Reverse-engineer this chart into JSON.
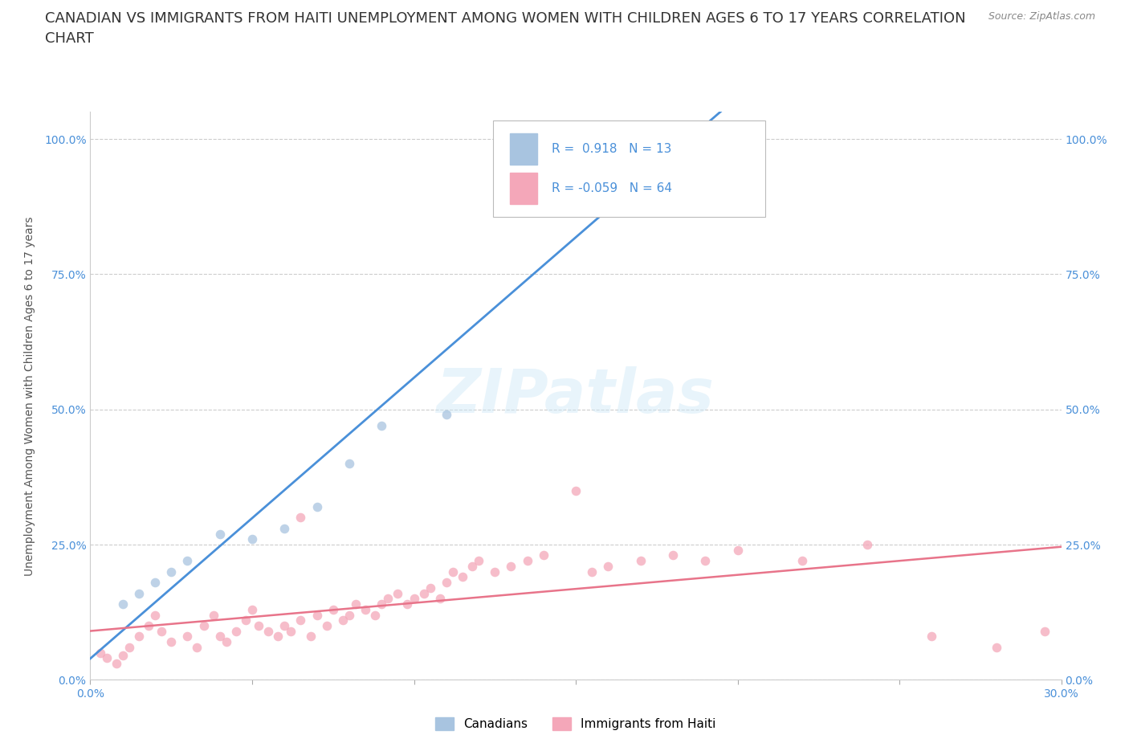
{
  "title_line1": "CANADIAN VS IMMIGRANTS FROM HAITI UNEMPLOYMENT AMONG WOMEN WITH CHILDREN AGES 6 TO 17 YEARS CORRELATION",
  "title_line2": "CHART",
  "source_text": "Source: ZipAtlas.com",
  "ylabel": "Unemployment Among Women with Children Ages 6 to 17 years",
  "watermark": "ZIPatlas",
  "legend_entries": [
    {
      "label": "Canadians",
      "R": 0.918,
      "N": 13,
      "color": "#a8c4e0"
    },
    {
      "label": "Immigrants from Haiti",
      "R": -0.059,
      "N": 64,
      "color": "#f4a7b9"
    }
  ],
  "canadians_x": [
    1.0,
    1.5,
    2.0,
    2.5,
    3.0,
    4.0,
    5.0,
    6.0,
    7.0,
    8.0,
    9.0,
    11.0,
    14.5
  ],
  "canadians_y": [
    14.0,
    16.0,
    18.0,
    20.0,
    22.0,
    27.0,
    26.0,
    28.0,
    32.0,
    40.0,
    47.0,
    49.0,
    99.0
  ],
  "haiti_x": [
    0.3,
    0.5,
    0.8,
    1.0,
    1.2,
    1.5,
    1.8,
    2.0,
    2.2,
    2.5,
    3.0,
    3.3,
    3.5,
    3.8,
    4.0,
    4.2,
    4.5,
    4.8,
    5.0,
    5.2,
    5.5,
    5.8,
    6.0,
    6.2,
    6.5,
    6.8,
    7.0,
    7.3,
    7.5,
    7.8,
    8.0,
    8.2,
    8.5,
    8.8,
    9.0,
    9.2,
    9.5,
    9.8,
    10.0,
    10.3,
    10.5,
    10.8,
    11.0,
    11.2,
    11.5,
    11.8,
    12.0,
    12.5,
    13.0,
    13.5,
    14.0,
    15.0,
    15.5,
    16.0,
    17.0,
    18.0,
    19.0,
    20.0,
    22.0,
    24.0,
    26.0,
    28.0,
    29.5,
    6.5
  ],
  "haiti_y": [
    5.0,
    4.0,
    3.0,
    4.5,
    6.0,
    8.0,
    10.0,
    12.0,
    9.0,
    7.0,
    8.0,
    6.0,
    10.0,
    12.0,
    8.0,
    7.0,
    9.0,
    11.0,
    13.0,
    10.0,
    9.0,
    8.0,
    10.0,
    9.0,
    11.0,
    8.0,
    12.0,
    10.0,
    13.0,
    11.0,
    12.0,
    14.0,
    13.0,
    12.0,
    14.0,
    15.0,
    16.0,
    14.0,
    15.0,
    16.0,
    17.0,
    15.0,
    18.0,
    20.0,
    19.0,
    21.0,
    22.0,
    20.0,
    21.0,
    22.0,
    23.0,
    35.0,
    20.0,
    21.0,
    22.0,
    23.0,
    22.0,
    24.0,
    22.0,
    25.0,
    8.0,
    6.0,
    9.0,
    30.0
  ],
  "canadian_line_color": "#4a90d9",
  "haiti_line_color": "#e8748a",
  "canadian_dot_color": "#a8c4e0",
  "haiti_dot_color": "#f4a7b9",
  "dot_size": 70,
  "dot_alpha": 0.75,
  "xlim": [
    0,
    30
  ],
  "ylim": [
    0,
    105
  ],
  "yticks": [
    0,
    25,
    50,
    75,
    100
  ],
  "ytick_labels": [
    "0.0%",
    "25.0%",
    "50.0%",
    "75.0%",
    "100.0%"
  ],
  "xticks": [
    0,
    5,
    10,
    15,
    20,
    25,
    30
  ],
  "xtick_labels": [
    "0.0%",
    "",
    "",
    "",
    "",
    "",
    "30.0%"
  ],
  "grid_color": "#cccccc",
  "background_color": "#ffffff",
  "title_fontsize": 13,
  "axis_label_fontsize": 10,
  "tick_fontsize": 10
}
